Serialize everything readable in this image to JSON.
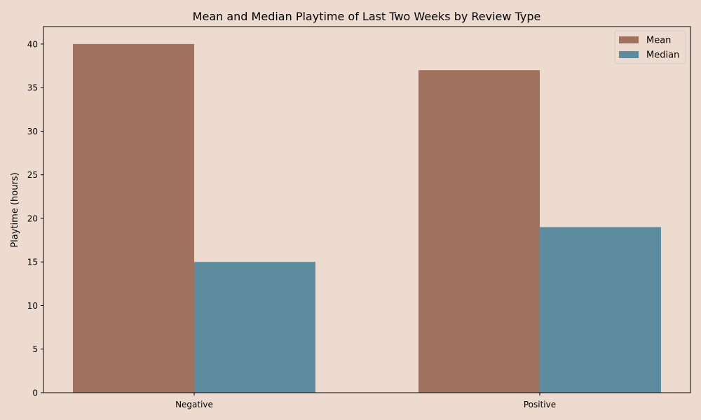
{
  "chart_data": {
    "type": "bar",
    "title": "Mean and Median Playtime of Last Two Weeks  by Review Type",
    "xlabel": "",
    "ylabel": "Playtime (hours)",
    "categories": [
      "Negative",
      "Positive"
    ],
    "series": [
      {
        "name": "Mean",
        "values": [
          40,
          37
        ],
        "color": "#A0725D"
      },
      {
        "name": "Median",
        "values": [
          15,
          19
        ],
        "color": "#5E8C9F"
      }
    ],
    "ylim": [
      0,
      42
    ],
    "yticks": [
      0,
      5,
      10,
      15,
      20,
      25,
      30,
      35,
      40
    ],
    "grid": false,
    "legend_position": "top-right",
    "background_color": "#EDDBD0"
  }
}
